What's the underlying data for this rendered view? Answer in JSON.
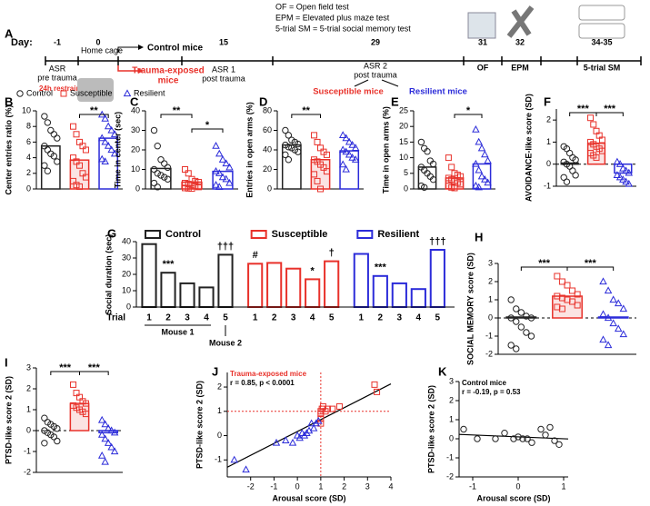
{
  "groups": [
    {
      "name": "Control",
      "color": "#222222",
      "marker": "circle"
    },
    {
      "name": "Susceptible",
      "color": "#e8312a",
      "marker": "square"
    },
    {
      "name": "Resilient",
      "color": "#2b2bd9",
      "marker": "triangle"
    }
  ],
  "timeline": {
    "panel": "A",
    "day_label": "Day:",
    "days": [
      "-1",
      "0",
      "15",
      "29",
      "31",
      "32",
      "34-35"
    ],
    "definitions": [
      "OF = Open field test",
      "EPM = Elevated plus maze test",
      "5-trial SM = 5-trial social memory test"
    ],
    "asr_pre": [
      "ASR",
      "pre trauma"
    ],
    "home_cage": "Home cage",
    "control": "Control mice",
    "restraint": "24h restraint",
    "trauma": [
      "Trauma-exposed",
      "mice"
    ],
    "asr1": [
      "ASR 1",
      "post trauma"
    ],
    "asr2": [
      "ASR 2",
      "post trauma"
    ],
    "susceptible": "Susceptible mice",
    "resilient": "Resilient mice",
    "tests": [
      "OF",
      "EPM",
      "5-trial SM"
    ]
  },
  "chart_data": [
    {
      "type": "dotbar",
      "panel": "B",
      "ylabel": "Center entries ratio (%)",
      "ylim": [
        0,
        10
      ],
      "yticks": [
        0,
        2,
        4,
        6,
        8,
        10
      ],
      "means": [
        5.5,
        3.7,
        6.5
      ],
      "points": [
        [
          9.3,
          8.5,
          7.5,
          7,
          6.5,
          5.5,
          5,
          4.5,
          4.2,
          3.5,
          3,
          2.3
        ],
        [
          8,
          7,
          6,
          5.5,
          5,
          4,
          3.5,
          3,
          2,
          1.5,
          1,
          0.5,
          0.3
        ],
        [
          9.5,
          9,
          8,
          7.5,
          7,
          6.5,
          6,
          5.5,
          5,
          4.5,
          3.8,
          3.5
        ]
      ],
      "brackets": [
        {
          "from": 1,
          "to": 2,
          "label": "**"
        }
      ]
    },
    {
      "type": "dotbar",
      "panel": "C",
      "ylabel": "Time in center (sec)",
      "ylim": [
        0,
        40
      ],
      "yticks": [
        0,
        10,
        20,
        30,
        40
      ],
      "means": [
        10.5,
        3.5,
        9
      ],
      "points": [
        [
          30,
          22,
          15,
          13,
          11,
          10,
          8,
          7,
          6,
          5,
          3,
          1
        ],
        [
          10,
          8,
          5,
          4,
          3.5,
          3,
          2.5,
          2,
          1.5,
          1,
          0.5,
          0.3,
          0.2
        ],
        [
          22,
          18,
          15,
          13,
          11,
          9,
          8,
          6,
          5,
          3,
          2,
          1
        ]
      ],
      "brackets": [
        {
          "from": 0,
          "to": 1,
          "label": "**"
        },
        {
          "from": 1,
          "to": 2,
          "label": "*"
        }
      ]
    },
    {
      "type": "dotbar",
      "panel": "D",
      "ylabel": "Entries in open arms (%)",
      "ylim": [
        0,
        80
      ],
      "yticks": [
        0,
        20,
        40,
        60,
        80
      ],
      "means": [
        45,
        30,
        39
      ],
      "points": [
        [
          60,
          55,
          50,
          48,
          46,
          45,
          43,
          42,
          40,
          38,
          35,
          30
        ],
        [
          55,
          48,
          42,
          38,
          35,
          30,
          28,
          25,
          22,
          18,
          15,
          8,
          0
        ],
        [
          55,
          52,
          48,
          45,
          42,
          40,
          38,
          35,
          32,
          30,
          25,
          20
        ]
      ],
      "brackets": [
        {
          "from": 0,
          "to": 1,
          "label": "**"
        }
      ]
    },
    {
      "type": "dotbar",
      "panel": "E",
      "ylabel": "Time in open arms (%)",
      "ylim": [
        0,
        25
      ],
      "yticks": [
        0,
        5,
        10,
        15,
        20,
        25
      ],
      "means": [
        7,
        3.5,
        8
      ],
      "points": [
        [
          15,
          13,
          12,
          9,
          8,
          7,
          6,
          5,
          4,
          3,
          1,
          0.5
        ],
        [
          10,
          7,
          5,
          4.5,
          4,
          3.5,
          3,
          2.5,
          2,
          1.5,
          1,
          0.5,
          0.3
        ],
        [
          19,
          15,
          13,
          11,
          9,
          8,
          6,
          4,
          3,
          2,
          1,
          0.5
        ]
      ],
      "brackets": [
        {
          "from": 1,
          "to": 2,
          "label": "*"
        }
      ]
    },
    {
      "type": "dotbar",
      "panel": "F",
      "ylabel": "AVOIDANCE-like score (SD)",
      "ylim": [
        -1,
        2.5
      ],
      "yticks": [
        -1,
        0,
        1,
        2
      ],
      "means": [
        0.05,
        0.95,
        -0.4
      ],
      "points": [
        [
          0.8,
          0.7,
          0.5,
          0.3,
          0.2,
          0.1,
          0,
          -0.1,
          -0.3,
          -0.5,
          -0.6,
          -0.8
        ],
        [
          2.1,
          1.8,
          1.5,
          1.3,
          1.1,
          1,
          0.9,
          0.8,
          0.7,
          0.6,
          0.5,
          0.4,
          0.3
        ],
        [
          0.1,
          0,
          -0.2,
          -0.3,
          -0.4,
          -0.5,
          -0.6,
          -0.7,
          -0.8,
          -0.9
        ]
      ],
      "brackets": [
        {
          "from": 0,
          "to": 1,
          "label": "***"
        },
        {
          "from": 1,
          "to": 2,
          "label": "***"
        }
      ]
    },
    {
      "type": "grouped_bar",
      "panel": "G",
      "ylabel": "Social duration (sec)",
      "ylim": [
        0,
        40
      ],
      "yticks": [
        0,
        10,
        20,
        30,
        40
      ],
      "x_title": "Trial",
      "categories": [
        "1",
        "2",
        "3",
        "4",
        "5"
      ],
      "subject_labels": [
        "Mouse 1",
        "Mouse 2"
      ],
      "series": [
        {
          "name": "Control",
          "color": "#222222",
          "values": [
            38.5,
            21,
            14.5,
            12,
            32
          ],
          "annotations": [
            null,
            "***",
            null,
            null,
            "†††"
          ]
        },
        {
          "name": "Susceptible",
          "color": "#e8312a",
          "values": [
            26.5,
            27,
            23.5,
            17,
            28
          ],
          "annotations": [
            "#",
            null,
            null,
            "*",
            "†"
          ]
        },
        {
          "name": "Resilient",
          "color": "#2b2bd9",
          "values": [
            32.5,
            19,
            14.5,
            11,
            35
          ],
          "annotations": [
            null,
            "***",
            null,
            null,
            "†††"
          ]
        }
      ]
    },
    {
      "type": "dotbar",
      "panel": "H",
      "ylabel": "SOCIAL MEMORY score (SD)",
      "ylim": [
        -2,
        3
      ],
      "yticks": [
        -2,
        -1,
        0,
        1,
        2,
        3
      ],
      "means": [
        0.05,
        1.2,
        0.05
      ],
      "points": [
        [
          1,
          0.5,
          0.3,
          0.1,
          0,
          0,
          -0.2,
          -0.5,
          -0.8,
          -1,
          -1.5,
          -1.7
        ],
        [
          2.3,
          2,
          1.8,
          1.5,
          1.3,
          1.2,
          1.1,
          1,
          0.9,
          0.7,
          0.6,
          0.5
        ],
        [
          2,
          1.5,
          1,
          0.8,
          0.5,
          0.2,
          0,
          -0.3,
          -0.6,
          -0.9,
          -1.2,
          -1.5
        ]
      ],
      "brackets": [
        {
          "from": 0,
          "to": 1,
          "label": "***"
        },
        {
          "from": 1,
          "to": 2,
          "label": "***"
        }
      ]
    },
    {
      "type": "dotbar",
      "panel": "I",
      "ylabel": "PTSD-like score 2 (SD)",
      "ylim": [
        -2,
        3
      ],
      "yticks": [
        -2,
        -1,
        0,
        1,
        2,
        3
      ],
      "means": [
        0,
        1.3,
        -0.1
      ],
      "points": [
        [
          0.6,
          0.4,
          0.3,
          0.2,
          0.1,
          0,
          -0.1,
          -0.2,
          -0.3,
          -0.5,
          -0.6
        ],
        [
          2.2,
          1.8,
          1.6,
          1.4,
          1.3,
          1.2,
          1.1,
          1,
          0.9,
          0.8
        ],
        [
          0.5,
          0.3,
          0.1,
          0,
          -0.1,
          -0.2,
          -0.4,
          -0.6,
          -0.8,
          -1,
          -1.2,
          -1.5
        ]
      ],
      "brackets": [
        {
          "from": 0,
          "to": 1,
          "label": "***"
        },
        {
          "from": 1,
          "to": 2,
          "label": "***"
        }
      ]
    },
    {
      "type": "scatter",
      "panel": "J",
      "xlabel": "Arousal score (SD)",
      "ylabel": "PTSD-like score 2 (SD)",
      "xlim": [
        -3,
        4
      ],
      "xticks": [
        -2,
        -1,
        0,
        1,
        2,
        3,
        4
      ],
      "ylim": [
        -1.7,
        2.6
      ],
      "yticks": [
        -1,
        0,
        1,
        2
      ],
      "annotation": "Trauma-exposed mice",
      "annotation_color": "#e8312a",
      "stats": "r = 0.85, p < 0.0001",
      "fit": {
        "slope": 0.49,
        "intercept": 0.17
      },
      "ref_lines": {
        "x": 1,
        "y": 1
      },
      "series": [
        {
          "color": "#e8312a",
          "marker": "square",
          "x": [
            1,
            1,
            1,
            1,
            1.05,
            1.1,
            1.2,
            1.3,
            1.5,
            1.8,
            3.3,
            3.4
          ],
          "y": [
            0.5,
            0.7,
            0.9,
            1,
            1.1,
            1.2,
            1,
            1.1,
            1.1,
            1.2,
            2.1,
            1.8
          ]
        },
        {
          "color": "#2b2bd9",
          "marker": "triangle",
          "x": [
            -2.7,
            -2.2,
            -0.9,
            -0.5,
            -0.2,
            0,
            0.1,
            0.2,
            0.3,
            0.4,
            0.5,
            0.6,
            0.7,
            0.8,
            0.9
          ],
          "y": [
            -1,
            -1.4,
            -0.3,
            -0.2,
            -0.3,
            0,
            -0.1,
            0.1,
            0,
            0.1,
            0.2,
            0.5,
            0.3,
            0.5,
            0.6
          ]
        }
      ]
    },
    {
      "type": "scatter",
      "panel": "K",
      "xlabel": "Arousal score (SD)",
      "ylabel": "PTSD-like score 2 (SD)",
      "xlim": [
        -1.3,
        1.1
      ],
      "xticks": [
        -1,
        0,
        1
      ],
      "ylim": [
        -2,
        3
      ],
      "yticks": [
        -2,
        -1,
        0,
        1,
        2,
        3
      ],
      "annotation": "Control mice",
      "annotation_color": "#000000",
      "stats": "r = -0.19, p = 0.53",
      "fit": {
        "slope": -0.1,
        "intercept": 0.1
      },
      "series": [
        {
          "color": "#222222",
          "marker": "circle",
          "x": [
            -1.2,
            -0.9,
            -0.5,
            -0.3,
            -0.1,
            0,
            0.1,
            0.2,
            0.3,
            0.5,
            0.6,
            0.7,
            0.8,
            0.9
          ],
          "y": [
            0.5,
            0,
            0,
            0.3,
            0,
            0.1,
            0,
            0,
            -0.2,
            0.5,
            0.2,
            0.6,
            -0.1,
            -0.3
          ]
        }
      ]
    }
  ]
}
